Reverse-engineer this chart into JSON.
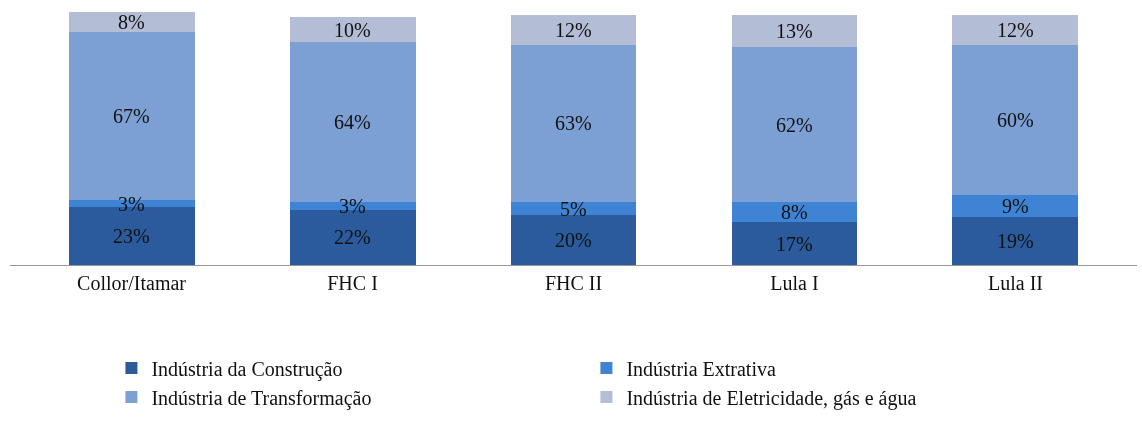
{
  "chart_data": {
    "type": "bar",
    "stacked": true,
    "legend": "bottom",
    "tick_labels": "x",
    "categories": [
      "Collor/Itamar",
      "FHC I",
      "FHC II",
      "Lula I",
      "Lula II"
    ],
    "series": [
      {
        "name": "Indústria da Construção",
        "color": "#2b5b9c",
        "values": [
          23,
          22,
          20,
          17,
          19
        ],
        "value_labels": [
          "23%",
          "22%",
          "20%",
          "17%",
          "19%"
        ]
      },
      {
        "name": "Indústria Extrativa",
        "color": "#3f84d4",
        "values": [
          3,
          3,
          5,
          8,
          9
        ],
        "value_labels": [
          "3%",
          "3%",
          "5%",
          "8%",
          "9%"
        ]
      },
      {
        "name": "Indústria de Transformação",
        "color": "#7c9fd4",
        "values": [
          67,
          64,
          63,
          62,
          60
        ],
        "value_labels": [
          "67%",
          "64%",
          "63%",
          "62%",
          "60%"
        ]
      },
      {
        "name": "Indústria de Eletricidade, gás e água",
        "color": "#b3bdd6",
        "values": [
          8,
          10,
          12,
          13,
          12
        ],
        "value_labels": [
          "8%",
          "10%",
          "12%",
          "13%",
          "12%"
        ]
      }
    ]
  }
}
